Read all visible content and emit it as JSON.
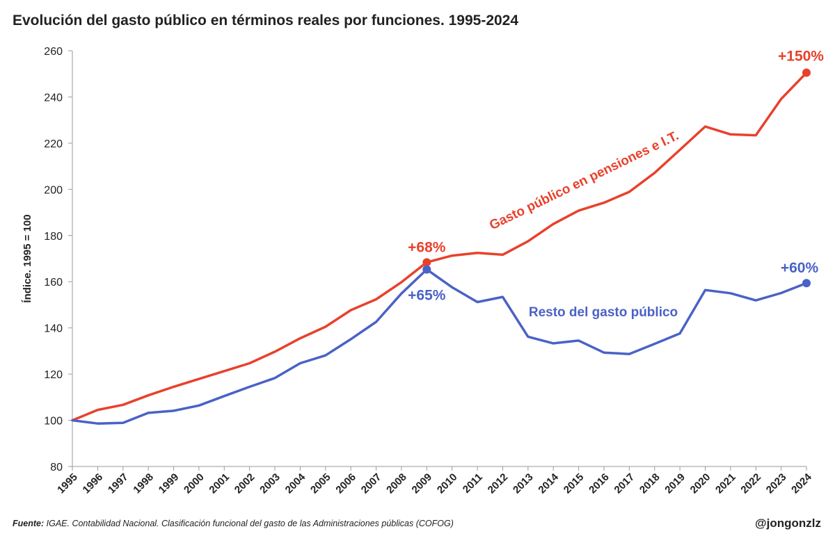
{
  "title": "Evolución del gasto público en términos reales por funciones. 1995-2024",
  "footer": {
    "source_label": "Fuente:",
    "source_text": "IGAE. Contabilidad Nacional. Clasificación funcional del gasto de las Administraciones públicas (COFOG)",
    "handle": "@jongonzlz"
  },
  "colors": {
    "red": "#e8412b",
    "blue": "#4a62c6",
    "axis": "#999999",
    "text": "#222222"
  },
  "chart_data": {
    "type": "line",
    "title": "Evolución del gasto público en términos reales por funciones. 1995-2024",
    "xlabel": "",
    "ylabel": "Índice. 1995 = 100",
    "ylim": [
      80,
      260
    ],
    "yticks": [
      80,
      100,
      120,
      140,
      160,
      180,
      200,
      220,
      240,
      260
    ],
    "grid": false,
    "categories": [
      "1995",
      "1996",
      "1997",
      "1998",
      "1999",
      "2000",
      "2001",
      "2002",
      "2003",
      "2004",
      "2005",
      "2006",
      "2007",
      "2008",
      "2009",
      "2010",
      "2011",
      "2012",
      "2013",
      "2014",
      "2015",
      "2016",
      "2017",
      "2018",
      "2019",
      "2020",
      "2021",
      "2022",
      "2023",
      "2024"
    ],
    "series": [
      {
        "name": "Gasto público en pensiones e I.T.",
        "color": "#e8412b",
        "values": [
          100,
          104.5,
          106.7,
          110.8,
          114.5,
          117.9,
          121.3,
          124.7,
          129.7,
          135.5,
          140.5,
          147.7,
          152.4,
          159.8,
          168.4,
          171.3,
          172.5,
          171.7,
          177.5,
          185,
          190.8,
          194.2,
          198.9,
          207.1,
          217.1,
          227.2,
          223.8,
          223.4,
          239.1,
          250.5
        ]
      },
      {
        "name": "Resto del gasto público",
        "color": "#4a62c6",
        "values": [
          100,
          98.6,
          98.9,
          103.2,
          104.1,
          106.4,
          110.5,
          114.5,
          118.3,
          124.7,
          128.1,
          135.1,
          142.6,
          154.9,
          165.3,
          157.6,
          151.2,
          153.4,
          136.2,
          133.3,
          134.5,
          129.3,
          128.7,
          133.1,
          137.6,
          156.4,
          155,
          151.9,
          155.1,
          159.4
        ]
      }
    ],
    "annotations": [
      {
        "text": "+68%",
        "series": 0,
        "x": "2009",
        "y": 168.4,
        "color": "#e8412b"
      },
      {
        "text": "+65%",
        "series": 1,
        "x": "2009",
        "y": 165.3,
        "color": "#4a62c6"
      },
      {
        "text": "+150%",
        "series": 0,
        "x": "2024",
        "y": 250.5,
        "color": "#e8412b"
      },
      {
        "text": "+60%",
        "series": 1,
        "x": "2024",
        "y": 159.4,
        "color": "#4a62c6"
      }
    ],
    "series_labels": [
      {
        "text": "Gasto público en pensiones e I.T.",
        "series": 0,
        "style": "rotated along line"
      },
      {
        "text": "Resto del gasto público",
        "series": 1,
        "style": "horizontal"
      }
    ]
  }
}
